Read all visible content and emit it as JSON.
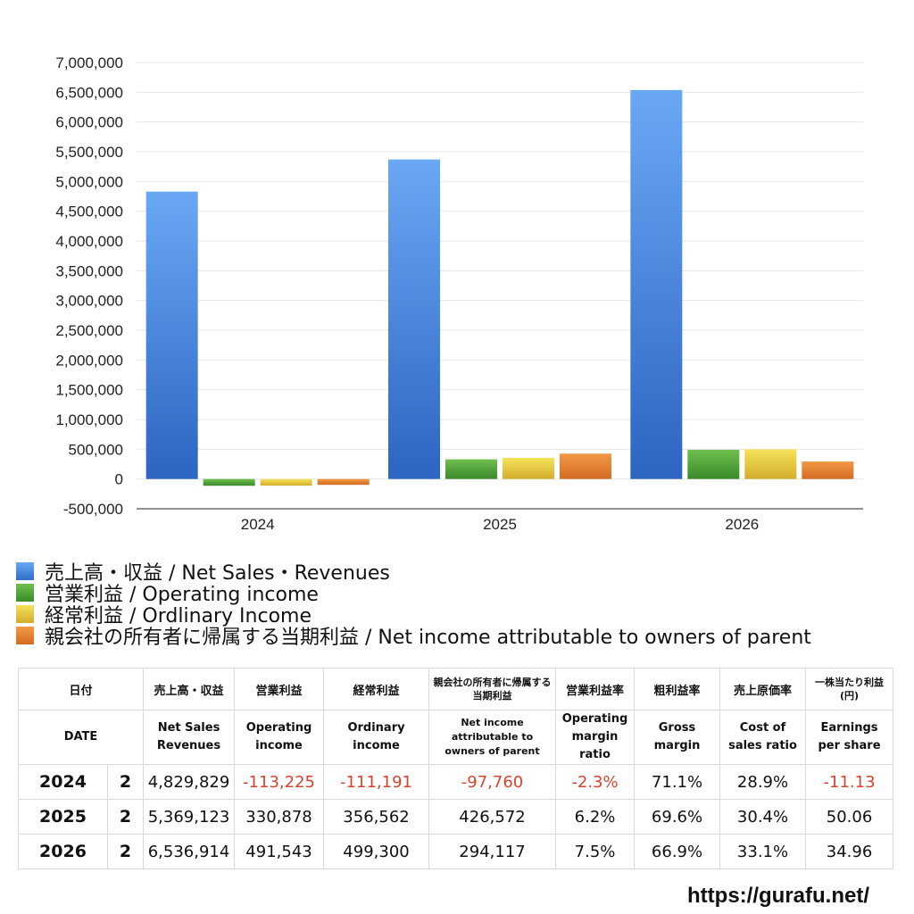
{
  "chart_data": {
    "type": "bar",
    "categories": [
      "2024",
      "2025",
      "2026"
    ],
    "ylim": [
      -500000,
      7000000
    ],
    "yticks": [
      "7,000,000",
      "6,500,000",
      "6,000,000",
      "5,500,000",
      "5,000,000",
      "4,500,000",
      "4,000,000",
      "3,500,000",
      "3,000,000",
      "2,500,000",
      "2,000,000",
      "1,500,000",
      "1,000,000",
      "500,000",
      "0",
      "-500,000"
    ],
    "grid": true,
    "legend_position": "bottom-left",
    "series": [
      {
        "name": "売上高・収益 / Net Sales・Revenues",
        "values": [
          4829829,
          5369123,
          6536914
        ],
        "color": "#4a86e8"
      },
      {
        "name": "営業利益 / Operating income",
        "values": [
          -113225,
          330878,
          491543
        ],
        "color": "#4f9d3a"
      },
      {
        "name": "経常利益 / Ordlinary Income",
        "values": [
          -111191,
          356562,
          499300
        ],
        "color": "#e6c63a"
      },
      {
        "name": "親会社の所有者に帰属する当期利益 / Net income attributable to owners of parent",
        "values": [
          -97760,
          426572,
          294117
        ],
        "color": "#e07a2e"
      }
    ]
  },
  "table": {
    "header_jp": [
      "日付",
      "売上高・収益",
      "営業利益",
      "経常利益",
      "親会社の所有者に帰属する当期利益",
      "営業利益率",
      "粗利益率",
      "売上原価率",
      "一株当たり利益(円)"
    ],
    "header_en": [
      "DATE",
      "Net Sales Revenues",
      "Operating income",
      "Ordinary income",
      "Net income attributable to owners of parent",
      "Operating margin ratio",
      "Gross margin",
      "Cost of sales ratio",
      "Earnings per share"
    ],
    "rows": [
      {
        "year": "2024",
        "q": "2",
        "cells": [
          "4,829,829",
          "-113,225",
          "-111,191",
          "-97,760",
          "-2.3%",
          "71.1%",
          "28.9%",
          "-11.13"
        ]
      },
      {
        "year": "2025",
        "q": "2",
        "cells": [
          "5,369,123",
          "330,878",
          "356,562",
          "426,572",
          "6.2%",
          "69.6%",
          "30.4%",
          "50.06"
        ]
      },
      {
        "year": "2026",
        "q": "2",
        "cells": [
          "6,536,914",
          "491,543",
          "499,300",
          "294,117",
          "7.5%",
          "66.9%",
          "33.1%",
          "34.96"
        ]
      }
    ]
  },
  "footer": {
    "url": "https://gurafu.net/"
  }
}
